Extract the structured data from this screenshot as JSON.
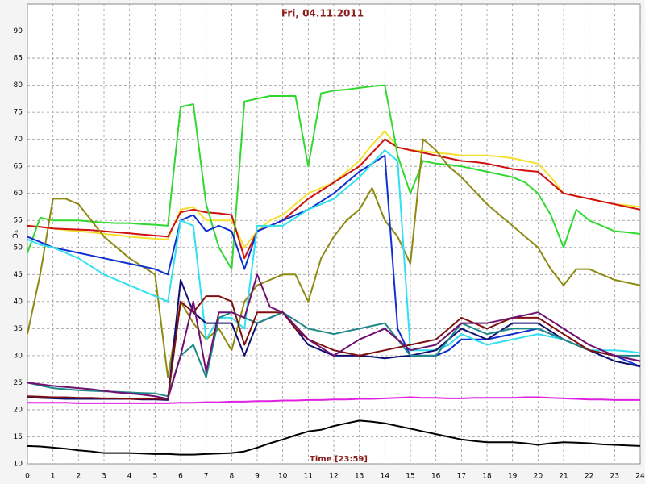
{
  "chart_data": {
    "type": "line",
    "title": "Fri, 04.11.2011",
    "x_label": "Time [23:59]",
    "y_label": "°C",
    "x": [
      0,
      0.5,
      1,
      1.5,
      2,
      2.5,
      3,
      3.5,
      4,
      4.5,
      5,
      5.5,
      6,
      6.5,
      7,
      7.5,
      8,
      8.5,
      9,
      9.5,
      10,
      10.5,
      11,
      11.5,
      12,
      12.5,
      13,
      13.5,
      14,
      14.5,
      15,
      15.5,
      16,
      16.5,
      17,
      17.5,
      18,
      18.5,
      19,
      19.5,
      20,
      20.5,
      21,
      21.5,
      22,
      22.5,
      23,
      23.5,
      24
    ],
    "xlim": [
      0,
      24
    ],
    "xticks": [
      0,
      1,
      2,
      3,
      4,
      5,
      6,
      7,
      8,
      9,
      10,
      11,
      12,
      13,
      14,
      15,
      16,
      17,
      18,
      19,
      20,
      21,
      22,
      23,
      24
    ],
    "ylim": [
      10,
      95
    ],
    "yticks": [
      10,
      15,
      20,
      25,
      30,
      35,
      40,
      45,
      50,
      55,
      60,
      65,
      70,
      75,
      80,
      85,
      90
    ],
    "grid": true,
    "series": [
      {
        "color": "#000000",
        "values": [
          13.3,
          13.2,
          13,
          12.8,
          12.5,
          12.3,
          12,
          12,
          12,
          11.9,
          11.8,
          11.8,
          11.7,
          11.7,
          11.8,
          11.9,
          12,
          12.3,
          13,
          13.8,
          14.5,
          15.3,
          16,
          16.3,
          17,
          17.5,
          18,
          17.8,
          17.5,
          17,
          16.5,
          16,
          15.5,
          15,
          14.5,
          14.2,
          14,
          14,
          14,
          13.8,
          13.5,
          13.8,
          14,
          13.9,
          13.8,
          13.6,
          13.5,
          13.4,
          13.3
        ]
      },
      {
        "color": "#e020e0",
        "values": [
          21.3,
          21.3,
          21.3,
          21.3,
          21.2,
          21.2,
          21.2,
          21.2,
          21.2,
          21.2,
          21.2,
          21.2,
          21.3,
          21.3,
          21.4,
          21.4,
          21.5,
          21.5,
          21.6,
          21.6,
          21.7,
          21.7,
          21.8,
          21.8,
          21.9,
          21.9,
          22,
          22,
          22.1,
          22.2,
          22.3,
          22.2,
          22.2,
          22.1,
          22.1,
          22.2,
          22.2,
          22.2,
          22.2,
          22.3,
          22.3,
          22.2,
          22.1,
          22,
          21.9,
          21.9,
          21.8,
          21.8,
          21.8
        ]
      },
      {
        "color": "#f5e030",
        "values": [
          54,
          53.8,
          53.5,
          53.2,
          53,
          52.8,
          52.5,
          52.3,
          52,
          51.8,
          51.6,
          51.5,
          57,
          57.5,
          55,
          55,
          55,
          50,
          53,
          55,
          56,
          58,
          60,
          61,
          62,
          64,
          66,
          69,
          71.5,
          68.5,
          68,
          67.8,
          67.5,
          67.3,
          67,
          67,
          67,
          66.8,
          66.5,
          66,
          65.5,
          63,
          60,
          59.5,
          59,
          58.5,
          58,
          57.8,
          57.5
        ]
      },
      {
        "color": "#d01010",
        "values": [
          54,
          53.8,
          53.5,
          53.4,
          53.3,
          53.2,
          53,
          52.8,
          52.6,
          52.4,
          52.2,
          52,
          56.5,
          57,
          56.5,
          56.3,
          56,
          48,
          53,
          54,
          55,
          57,
          59,
          60.5,
          62,
          63.5,
          65,
          67.5,
          70,
          68.5,
          68,
          67.5,
          67,
          66.5,
          66,
          65.8,
          65.5,
          65,
          64.5,
          64.2,
          64,
          62,
          60,
          59.5,
          59,
          58.5,
          58,
          57.5,
          57
        ]
      },
      {
        "color": "#30d830",
        "values": [
          49,
          55.5,
          55,
          55,
          55,
          54.8,
          54.6,
          54.5,
          54.5,
          54.3,
          54.2,
          54,
          76,
          76.5,
          58,
          50,
          46,
          77,
          77.5,
          78,
          78,
          78,
          65,
          78.5,
          79,
          79.2,
          79.5,
          79.8,
          80,
          67,
          60,
          66,
          65.5,
          65.3,
          65,
          64.5,
          64,
          63.5,
          63,
          62,
          60,
          56,
          50,
          57,
          55,
          54,
          53,
          52.8,
          52.5
        ]
      },
      {
        "color": "#8c8a10",
        "values": [
          34,
          45,
          59,
          59,
          58,
          55,
          52,
          50,
          48,
          46.5,
          45,
          26,
          40,
          36,
          33,
          35,
          31,
          40,
          43,
          44,
          45,
          45,
          40,
          48,
          52,
          55,
          57,
          61,
          55,
          52,
          47,
          70,
          68,
          65,
          63,
          60.5,
          58,
          56,
          54,
          52,
          50,
          46,
          43,
          46,
          46,
          45,
          44,
          43.5,
          43
        ]
      },
      {
        "color": "#1030d0",
        "values": [
          52,
          51,
          50,
          49.5,
          49,
          48.5,
          48,
          47.5,
          47,
          46.5,
          46,
          45,
          55,
          56,
          53,
          54,
          53,
          46,
          53,
          54,
          55,
          56,
          57,
          58.5,
          60,
          62,
          64,
          65.5,
          67,
          35,
          30,
          30,
          30,
          31,
          33,
          33,
          33,
          33.5,
          34,
          34.5,
          35,
          34,
          33,
          32,
          31,
          30.5,
          30,
          29,
          28
        ]
      },
      {
        "color": "#30e0f0",
        "values": [
          51.5,
          50.5,
          50,
          49,
          48,
          46.5,
          45,
          44,
          43,
          42,
          41,
          40,
          55,
          54,
          33,
          37,
          37,
          35,
          54,
          54,
          54,
          55.5,
          57,
          58,
          59,
          61,
          63,
          65.5,
          68,
          66,
          31,
          31,
          31,
          32,
          34,
          33,
          32,
          32.5,
          33,
          33.5,
          34,
          33.5,
          33,
          32,
          31,
          31,
          31,
          30.8,
          30.5
        ]
      },
      {
        "color": "#101070",
        "values": [
          22.3,
          22.2,
          22.1,
          22,
          22,
          22,
          22,
          22,
          22,
          21.9,
          21.9,
          21.8,
          44,
          38,
          36,
          36,
          36,
          30,
          36,
          37,
          38,
          35,
          32,
          31,
          30,
          30,
          30,
          29.8,
          29.5,
          29.8,
          30,
          30.5,
          31,
          33,
          35,
          34,
          33,
          34.5,
          36,
          36,
          36,
          34.5,
          33,
          32,
          31,
          30,
          29,
          28.5,
          28
        ]
      },
      {
        "color": "#208888",
        "values": [
          25,
          24.5,
          24,
          23.8,
          23.6,
          23.5,
          23.4,
          23.3,
          23.2,
          23.1,
          23,
          22.5,
          30,
          32,
          26,
          37,
          38,
          37,
          36,
          37,
          38,
          36.5,
          35,
          34.5,
          34,
          34.5,
          35,
          35.5,
          36,
          33,
          30,
          30,
          30,
          33,
          36,
          35,
          34,
          34.5,
          35,
          35,
          35,
          34,
          33,
          32,
          31,
          30.5,
          30,
          30,
          30
        ]
      },
      {
        "color": "#801010",
        "values": [
          22.5,
          22.4,
          22.3,
          22.3,
          22.2,
          22.2,
          22.1,
          22.1,
          22,
          22,
          22,
          22,
          40,
          38,
          41,
          41,
          40,
          32,
          38,
          38,
          38,
          35,
          33,
          32,
          31,
          30.5,
          30,
          30.5,
          31,
          31.5,
          32,
          32.5,
          33,
          35,
          37,
          36,
          35,
          36,
          37,
          37,
          37,
          35.5,
          34,
          32.5,
          31,
          30.5,
          30,
          29.5,
          29
        ]
      },
      {
        "color": "#701070",
        "values": [
          25,
          24.7,
          24.4,
          24.2,
          24,
          23.8,
          23.5,
          23.2,
          23,
          22.8,
          22.5,
          22,
          30,
          40,
          27,
          38,
          38,
          37,
          45,
          39,
          38,
          35.5,
          33,
          31.5,
          30,
          31.5,
          33,
          34,
          35,
          33,
          31,
          31.5,
          32,
          34,
          36,
          36,
          36,
          36.5,
          37,
          37.5,
          38,
          36.5,
          35,
          33.5,
          32,
          31,
          30,
          29.5,
          29
        ]
      }
    ]
  }
}
